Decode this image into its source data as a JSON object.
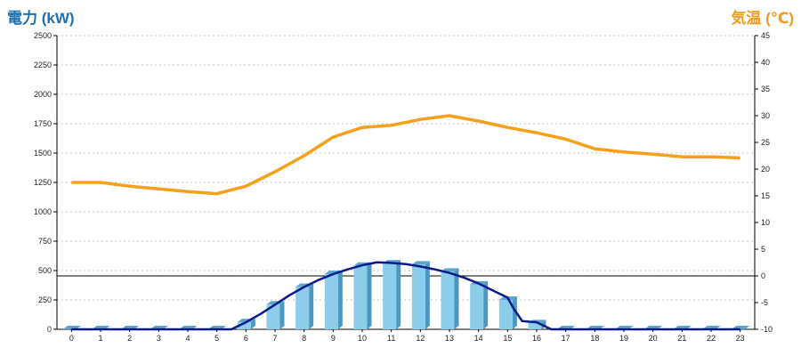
{
  "colors": {
    "power_title": "#1e6fb0",
    "temp_title": "#f39a1e",
    "bar_front": "#8ccdea",
    "bar_side": "#4a97bf",
    "bar_top": "#5aa8cf",
    "temp_line": "#f6a01a",
    "power_line": "#0a1a8c",
    "grid": "#c6c6c6",
    "axis": "#000000"
  },
  "chart_data": {
    "type": "bar",
    "left_axis_title": "電力 (kW)",
    "right_axis_title": "気温 (℃)",
    "categories": [
      "0",
      "1",
      "2",
      "3",
      "4",
      "5",
      "6",
      "7",
      "8",
      "9",
      "10",
      "11",
      "12",
      "13",
      "14",
      "15",
      "16",
      "17",
      "18",
      "19",
      "20",
      "21",
      "22",
      "23"
    ],
    "ylim_left": [
      0,
      2500
    ],
    "ylim_right": [
      -10,
      45
    ],
    "y_ticks_left": [
      "0",
      "250",
      "500",
      "750",
      "1000",
      "1250",
      "1500",
      "1750",
      "2000",
      "2250",
      "2500"
    ],
    "y_ticks_right": [
      "-10",
      "-5",
      "0",
      "5",
      "10",
      "15",
      "20",
      "25",
      "30",
      "35",
      "40",
      "45"
    ],
    "grid": true,
    "series": [
      {
        "type": "bar",
        "axis": "left",
        "values": [
          0,
          0,
          0,
          0,
          0,
          0,
          60,
          210,
          360,
          470,
          540,
          560,
          550,
          490,
          380,
          250,
          50,
          0,
          0,
          0,
          0,
          0,
          0,
          0
        ]
      },
      {
        "type": "line",
        "axis": "right",
        "values": [
          17.5,
          17.5,
          16.8,
          16.3,
          15.8,
          15.4,
          16.8,
          19.5,
          22.5,
          26,
          27.8,
          28.2,
          29.3,
          30,
          29,
          27.8,
          26.8,
          25.6,
          23.8,
          23.2,
          22.8,
          22.3,
          22.3,
          22.1
        ]
      },
      {
        "type": "line",
        "axis": "left",
        "x": [
          0,
          5.5,
          6,
          6.5,
          7,
          7.5,
          8,
          8.5,
          9,
          9.5,
          10,
          10.5,
          11,
          11.5,
          12,
          12.5,
          13,
          13.5,
          14,
          14.5,
          15,
          15.2,
          15.5,
          16,
          16.5,
          17,
          23
        ],
        "values": [
          0,
          0,
          60,
          130,
          210,
          290,
          360,
          420,
          470,
          510,
          545,
          570,
          565,
          555,
          535,
          510,
          480,
          440,
          390,
          330,
          270,
          180,
          70,
          60,
          0,
          0,
          0
        ]
      }
    ]
  }
}
